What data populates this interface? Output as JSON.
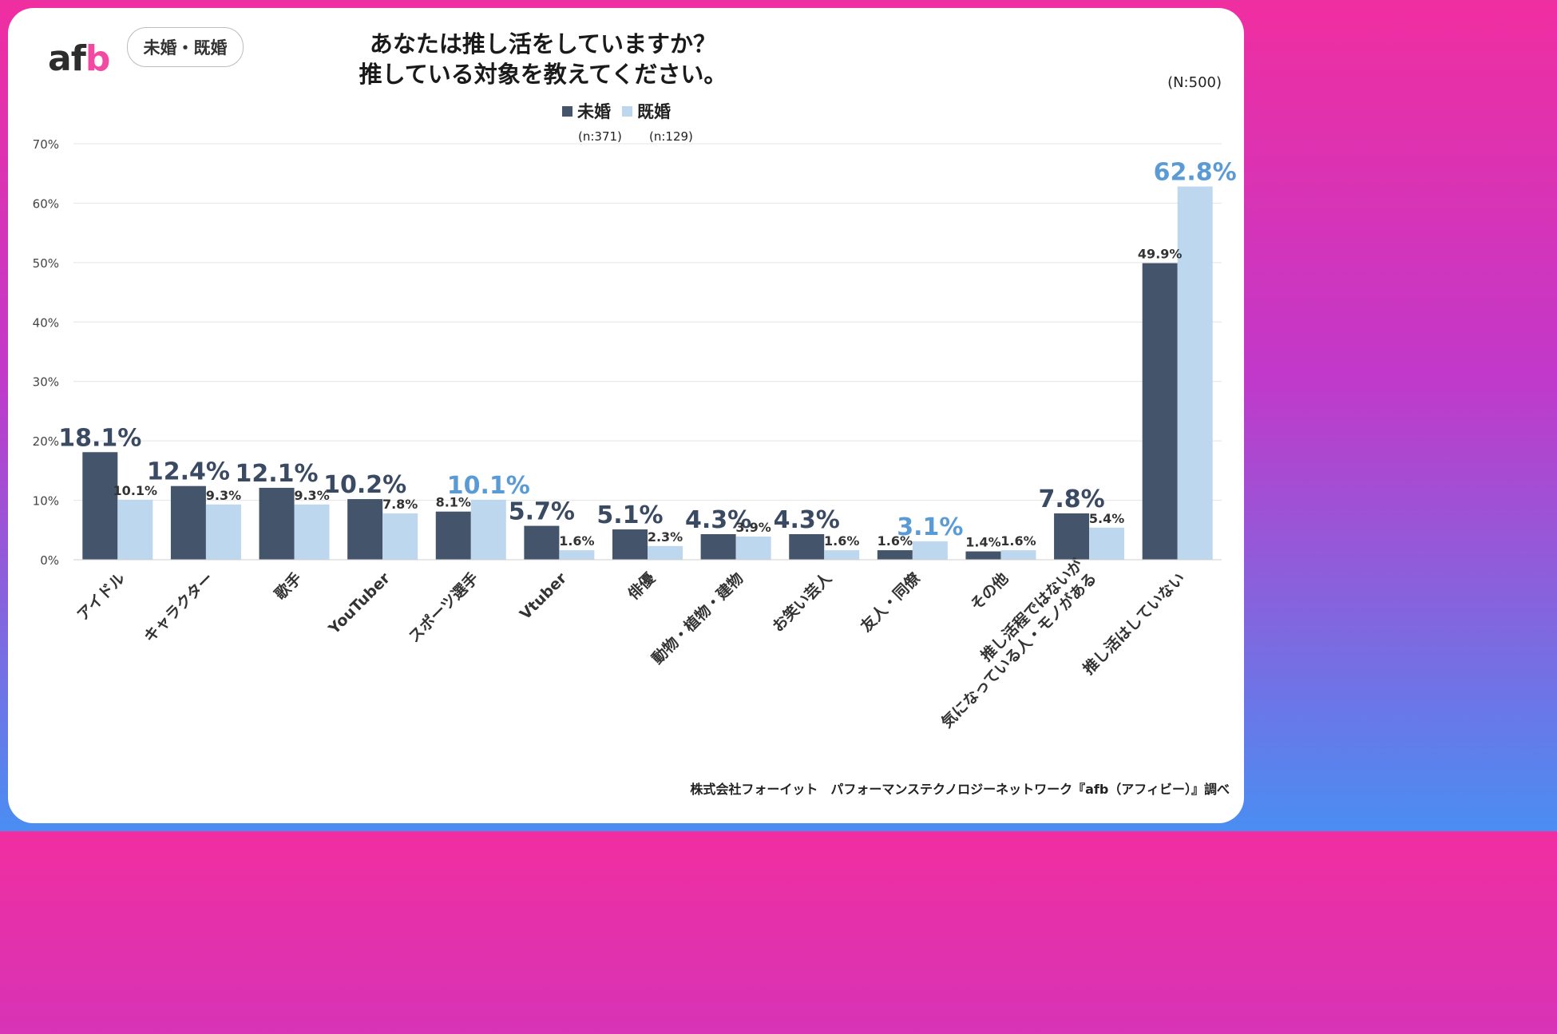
{
  "brand": {
    "logo_text_a": "af",
    "logo_text_b": "b"
  },
  "segment_pill": "未婚・既婚",
  "title_line1": "あなたは推し活をしていますか？",
  "title_line2": "推している対象を教えてください。",
  "total_n": "(N:500)",
  "legend": [
    {
      "label": "未婚",
      "n": "(n:371)",
      "color": "#44546a"
    },
    {
      "label": "既婚",
      "n": "(n:129)",
      "color": "#bdd7ee"
    }
  ],
  "source": "株式会社フォーイット　パフォーマンステクノロジーネットワーク『afb（アフィビー）』調べ",
  "colors": {
    "unmarried": "#44546a",
    "married": "#bdd7ee",
    "highlight_married_label": "#5b9bd5",
    "grid": "#e4e4e4"
  },
  "chart_data": {
    "type": "bar",
    "title": "あなたは推し活をしていますか？推している対象を教えてください。",
    "ylim": [
      0,
      70
    ],
    "yticks": [
      "0%",
      "10%",
      "20%",
      "30%",
      "40%",
      "50%",
      "60%",
      "70%"
    ],
    "categories": [
      [
        "アイドル"
      ],
      [
        "キャラクター"
      ],
      [
        "歌手"
      ],
      [
        "YouTuber"
      ],
      [
        "スポーツ選手"
      ],
      [
        "Vtuber"
      ],
      [
        "俳優"
      ],
      [
        "動物・植物・建物"
      ],
      [
        "お笑い芸人"
      ],
      [
        "友人・同僚"
      ],
      [
        "その他"
      ],
      [
        "推し活程ではないが",
        "気になっている人・モノがある"
      ],
      [
        "推し活はしていない"
      ]
    ],
    "series": [
      {
        "name": "未婚",
        "values": [
          18.1,
          12.4,
          12.1,
          10.2,
          8.1,
          5.7,
          5.1,
          4.3,
          4.3,
          1.6,
          1.4,
          7.8,
          49.9
        ],
        "labels": [
          "18.1%",
          "12.4%",
          "12.1%",
          "10.2%",
          "8.1%",
          "5.7%",
          "5.1%",
          "4.3%",
          "4.3%",
          "1.6%",
          "1.4%",
          "7.8%",
          "49.9%"
        ]
      },
      {
        "name": "既婚",
        "values": [
          10.1,
          9.3,
          9.3,
          7.8,
          10.1,
          1.6,
          2.3,
          3.9,
          1.6,
          3.1,
          1.6,
          5.4,
          62.8
        ],
        "labels": [
          "10.1%",
          "9.3%",
          "9.3%",
          "7.8%",
          "10.1%",
          "1.6%",
          "2.3%",
          "3.9%",
          "1.6%",
          "3.1%",
          "1.6%",
          "5.4%",
          "62.8%"
        ]
      }
    ]
  }
}
